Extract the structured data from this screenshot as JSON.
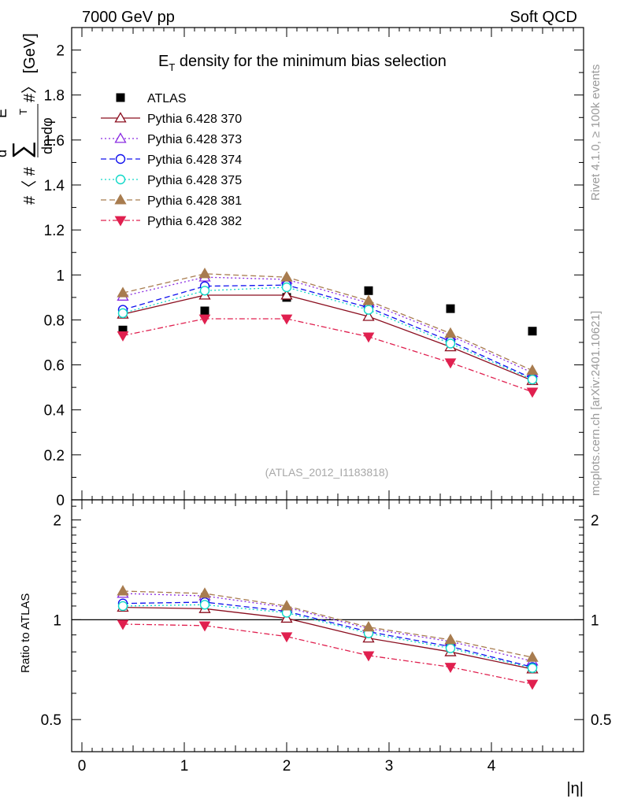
{
  "header": {
    "left": "7000 GeV pp",
    "right": "Soft QCD"
  },
  "side_labels": {
    "rivet": "Rivet 4.1.0, ≥ 100k events",
    "mcplots": "mcplots.cern.ch [arXiv:2401.10621]"
  },
  "chart_data": [
    {
      "type": "scatter",
      "title": "E_T density  for the minimum bias selection",
      "title_main": "E",
      "title_sub": "T",
      "title_rest": " density  for the minimum bias selection",
      "ylabel_text": "#〈 # d ∑ E_T # / dη dφ #〉 [GeV]",
      "ylabel_parts": {
        "open": "#〈 #",
        "d": "d",
        "sum": "∑",
        "e": "E",
        "t": "T",
        "close": "#〉 [GeV]",
        "den": "dη dφ"
      },
      "xlim": [
        -0.1,
        4.9
      ],
      "ylim": [
        0,
        2.1
      ],
      "yticks": [
        "0",
        "0.2",
        "0.4",
        "0.6",
        "0.8",
        "1",
        "1.2",
        "1.4",
        "1.6",
        "1.8",
        "2"
      ],
      "watermark": "(ATLAS_2012_I1183818)",
      "x": [
        0.4,
        1.2,
        2.0,
        2.8,
        3.6,
        4.4
      ],
      "series": [
        {
          "name": "ATLAS",
          "values": [
            0.755,
            0.84,
            0.9,
            0.93,
            0.85,
            0.75
          ]
        },
        {
          "name": "Pythia 6.428 370",
          "values": [
            0.825,
            0.91,
            0.91,
            0.815,
            0.68,
            0.53
          ]
        },
        {
          "name": "Pythia 6.428 373",
          "values": [
            0.905,
            0.99,
            0.98,
            0.875,
            0.73,
            0.565
          ]
        },
        {
          "name": "Pythia 6.428 374",
          "values": [
            0.845,
            0.95,
            0.955,
            0.855,
            0.705,
            0.54
          ]
        },
        {
          "name": "Pythia 6.428 375",
          "values": [
            0.83,
            0.93,
            0.945,
            0.845,
            0.695,
            0.535
          ]
        },
        {
          "name": "Pythia 6.428 381",
          "values": [
            0.92,
            1.005,
            0.99,
            0.885,
            0.74,
            0.575
          ]
        },
        {
          "name": "Pythia 6.428 382",
          "values": [
            0.73,
            0.805,
            0.805,
            0.725,
            0.61,
            0.48
          ]
        }
      ]
    },
    {
      "type": "scatter",
      "title": "Ratio to ATLAS",
      "ylabel": "Ratio to ATLAS",
      "xlabel": "|η|",
      "xlim": [
        -0.1,
        4.9
      ],
      "ylim": [
        0.4,
        2.3
      ],
      "scale": "log",
      "xticks": [
        "0",
        "1",
        "2",
        "3",
        "4"
      ],
      "yticks": [
        "0.5",
        "1",
        "2"
      ],
      "x": [
        0.4,
        1.2,
        2.0,
        2.8,
        3.6,
        4.4
      ],
      "series": [
        {
          "name": "Pythia 6.428 370",
          "values": [
            1.09,
            1.08,
            1.01,
            0.88,
            0.8,
            0.71
          ]
        },
        {
          "name": "Pythia 6.428 373",
          "values": [
            1.2,
            1.18,
            1.09,
            0.94,
            0.86,
            0.75
          ]
        },
        {
          "name": "Pythia 6.428 374",
          "values": [
            1.12,
            1.13,
            1.06,
            0.92,
            0.83,
            0.72
          ]
        },
        {
          "name": "Pythia 6.428 375",
          "values": [
            1.1,
            1.11,
            1.05,
            0.91,
            0.82,
            0.715
          ]
        },
        {
          "name": "Pythia 6.428 381",
          "values": [
            1.22,
            1.2,
            1.1,
            0.95,
            0.87,
            0.77
          ]
        },
        {
          "name": "Pythia 6.428 382",
          "values": [
            0.97,
            0.96,
            0.89,
            0.78,
            0.72,
            0.64
          ]
        }
      ]
    }
  ],
  "colors": {
    "ATLAS": "#000000",
    "Pythia 6.428 370": "#8b0e1f",
    "Pythia 6.428 373": "#8a2be2",
    "Pythia 6.428 374": "#1010ee",
    "Pythia 6.428 375": "#10d8c8",
    "Pythia 6.428 381": "#a87c4f",
    "Pythia 6.428 382": "#e0204f"
  },
  "markers": {
    "ATLAS": "square-filled",
    "Pythia 6.428 370": "triangle-open",
    "Pythia 6.428 373": "triangle-open",
    "Pythia 6.428 374": "circle-open",
    "Pythia 6.428 375": "circle-open",
    "Pythia 6.428 381": "triangle-filled",
    "Pythia 6.428 382": "triangle-down-filled"
  },
  "dashes": {
    "ATLAS": "none",
    "Pythia 6.428 370": "solid",
    "Pythia 6.428 373": "dotted",
    "Pythia 6.428 374": "dashed",
    "Pythia 6.428 375": "dotted",
    "Pythia 6.428 381": "dashed",
    "Pythia 6.428 382": "dashdot"
  }
}
